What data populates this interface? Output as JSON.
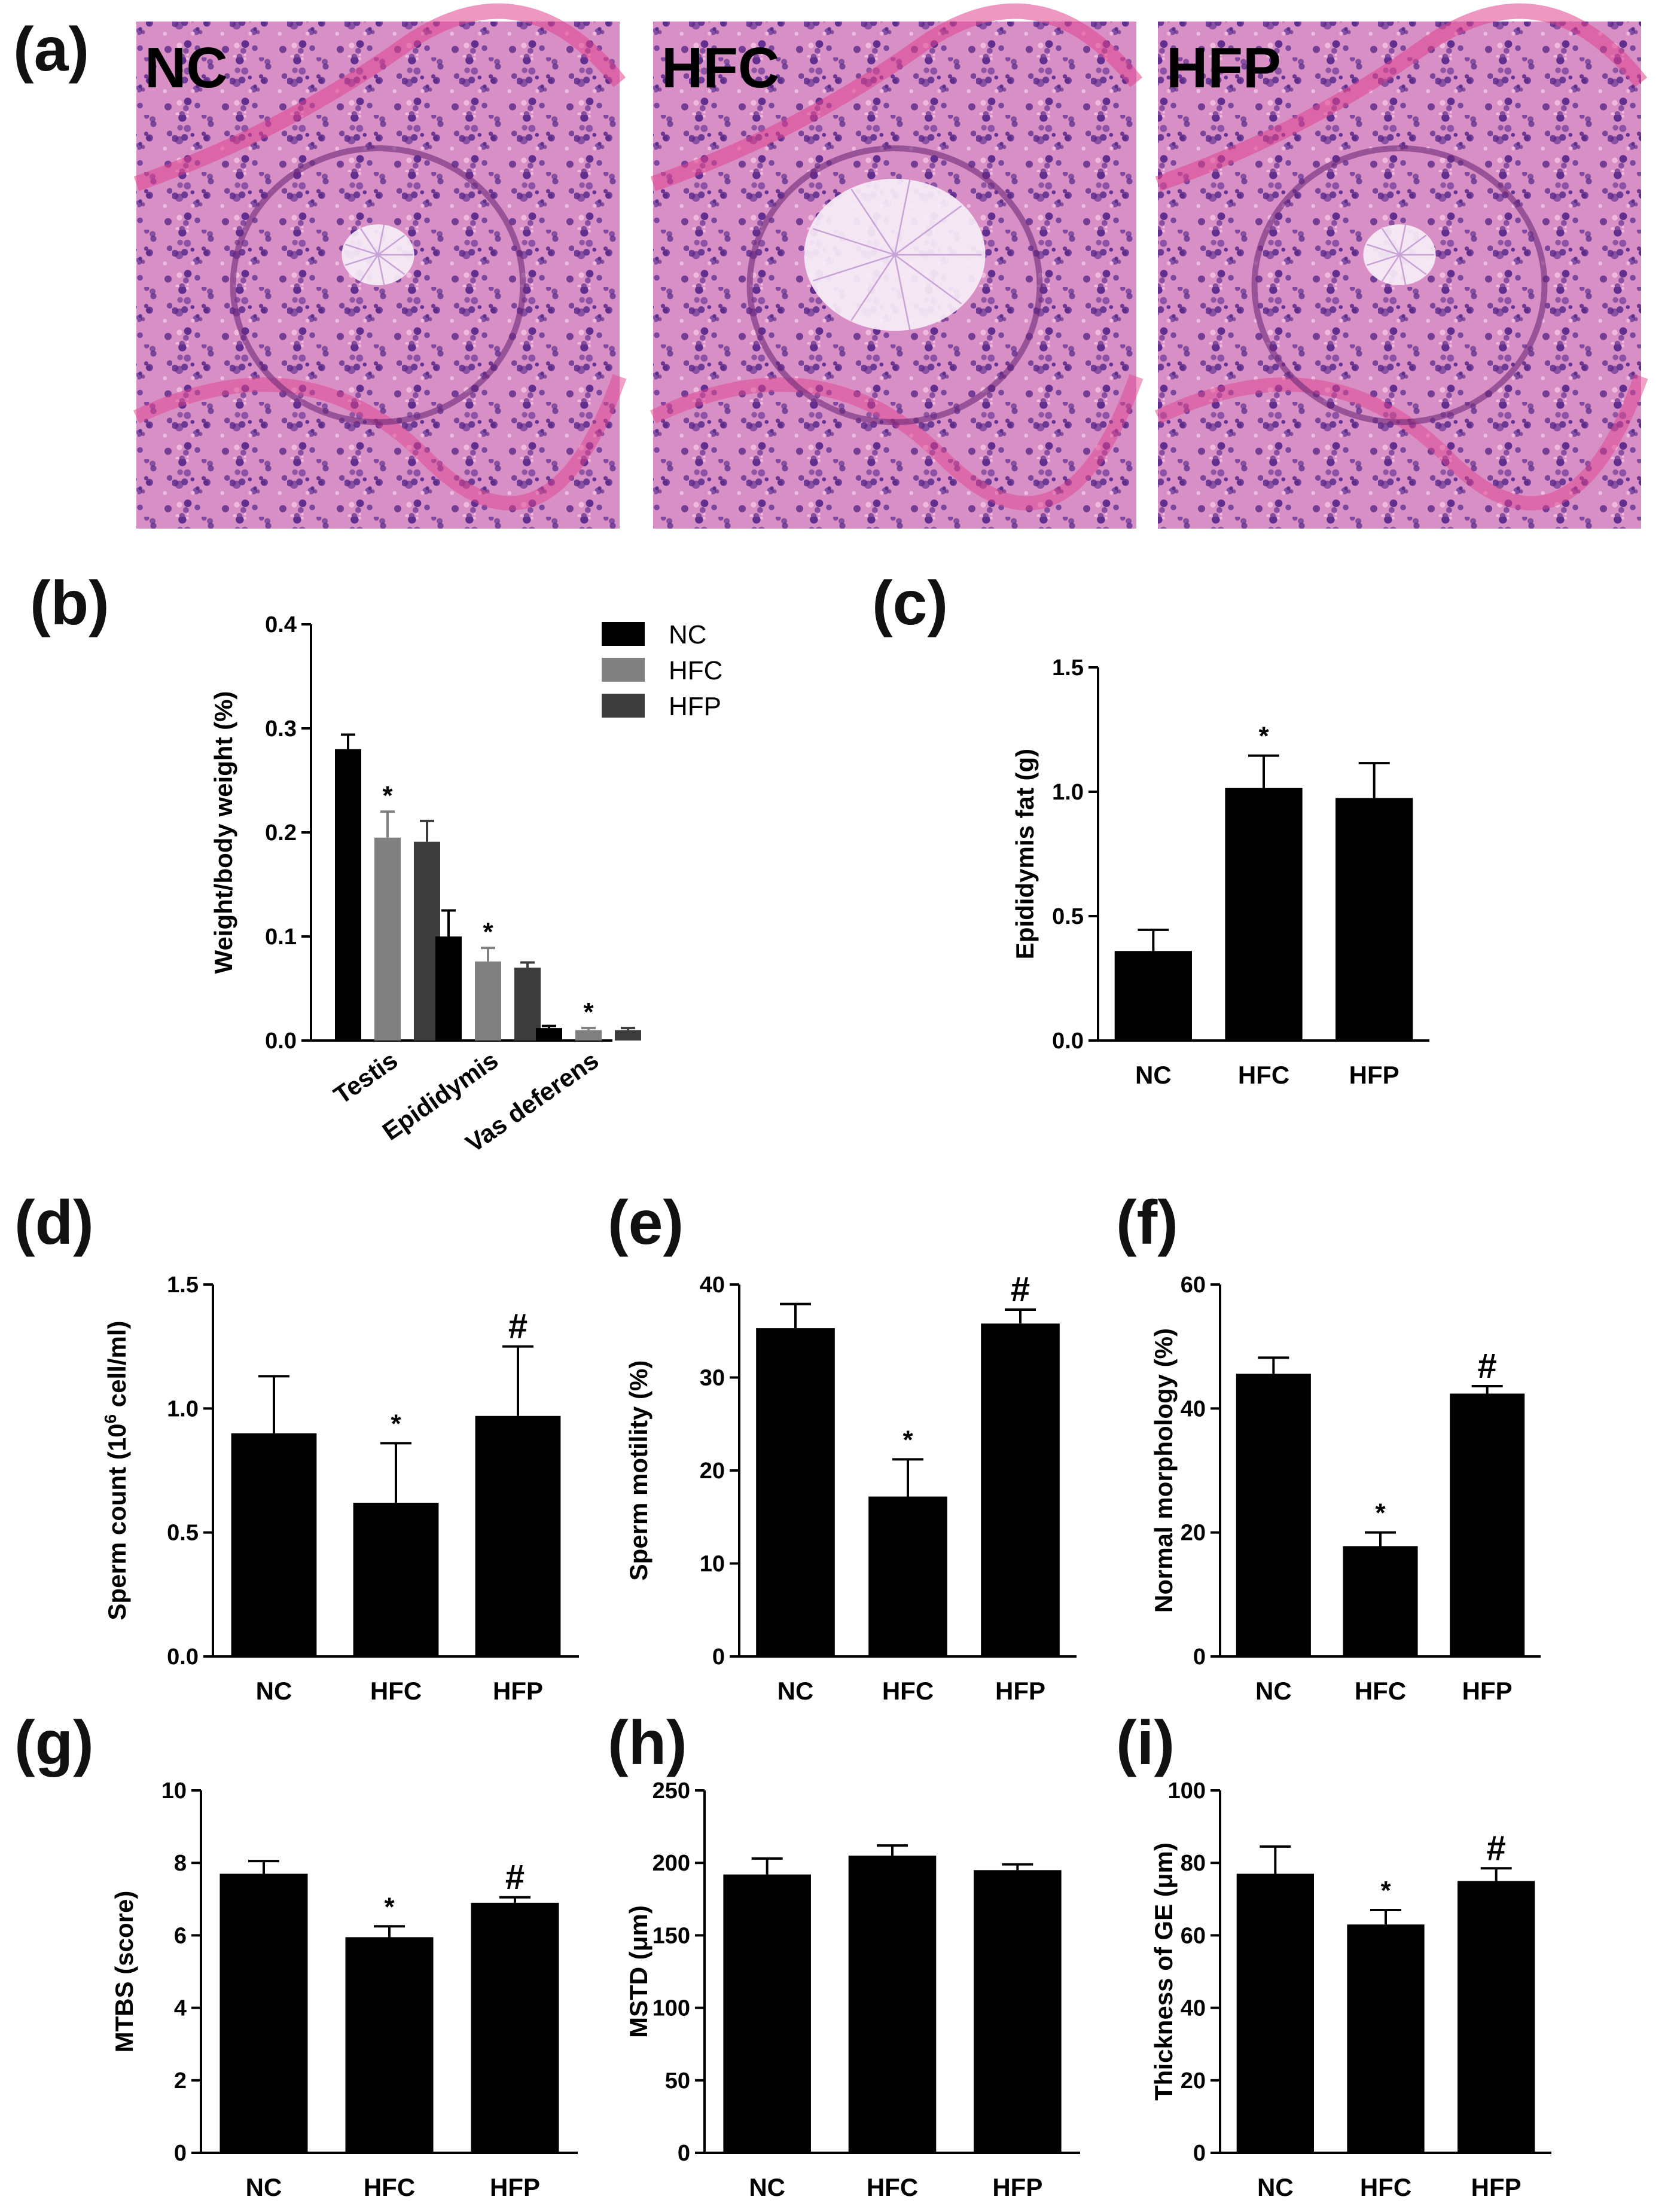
{
  "colors": {
    "background": "#ffffff",
    "bar_black": "#000000",
    "bar_gray": "#808080",
    "bar_dark": "#3c3c3c",
    "tissue_base": "#d88fc6",
    "tissue_nuclei": "#5a2a8c",
    "tissue_stroma": "#e0438e"
  },
  "panel_a": {
    "label": "(a)",
    "images": [
      {
        "label": "NC",
        "lumen": "normal"
      },
      {
        "label": "HFC",
        "lumen": "wide"
      },
      {
        "label": "HFP",
        "lumen": "normal"
      }
    ]
  },
  "chart_data": [
    {
      "panel": "(b)",
      "type": "bar",
      "xlabel": "",
      "ylabel": "Weight/body weight (%)",
      "ylim": [
        0,
        0.4
      ],
      "yticks": [
        "0.0",
        "0.1",
        "0.2",
        "0.3",
        "0.4"
      ],
      "categories": [
        "Testis",
        "Epididymis",
        "Vas deferens"
      ],
      "series": [
        {
          "name": "NC",
          "color": "#000000",
          "values": [
            0.28,
            0.1,
            0.012
          ],
          "errors": [
            0.014,
            0.025,
            0.002
          ]
        },
        {
          "name": "HFC",
          "color": "#808080",
          "values": [
            0.195,
            0.076,
            0.01
          ],
          "errors": [
            0.025,
            0.013,
            0.002
          ]
        },
        {
          "name": "HFP",
          "color": "#3c3c3c",
          "values": [
            0.191,
            0.07,
            0.01
          ],
          "errors": [
            0.02,
            0.005,
            0.002
          ]
        }
      ],
      "annotations": [
        {
          "category": 0,
          "series": 1,
          "text": "*"
        },
        {
          "category": 1,
          "series": 1,
          "text": "*"
        },
        {
          "category": 2,
          "series": 1,
          "text": "*"
        }
      ],
      "legend": "top-right",
      "grid": false
    },
    {
      "panel": "(c)",
      "type": "bar",
      "xlabel": "",
      "ylabel": "Epididymis fat (g)",
      "ylim": [
        0,
        1.5
      ],
      "yticks": [
        "0.0",
        "0.5",
        "1.0",
        "1.5"
      ],
      "categories": [
        "NC",
        "HFC",
        "HFP"
      ],
      "values": [
        0.36,
        1.015,
        0.975
      ],
      "errors": [
        0.085,
        0.13,
        0.14
      ],
      "annotations": [
        "",
        "*",
        ""
      ],
      "grid": false
    },
    {
      "panel": "(d)",
      "type": "bar",
      "xlabel": "",
      "ylabel": "Sperm count (10^6 cell/ml)",
      "ylabel_parts": {
        "pre": "Sperm count (10",
        "sup": "6",
        "post": " cell/ml)"
      },
      "ylim": [
        0,
        1.5
      ],
      "yticks": [
        "0.0",
        "0.5",
        "1.0",
        "1.5"
      ],
      "categories": [
        "NC",
        "HFC",
        "HFP"
      ],
      "values": [
        0.9,
        0.62,
        0.97
      ],
      "errors": [
        0.23,
        0.24,
        0.28
      ],
      "annotations": [
        "",
        "*",
        "#"
      ],
      "grid": false
    },
    {
      "panel": "(e)",
      "type": "bar",
      "xlabel": "",
      "ylabel": "Sperm motility (%)",
      "ylim": [
        0,
        40
      ],
      "yticks": [
        "0",
        "10",
        "20",
        "30",
        "40"
      ],
      "categories": [
        "NC",
        "HFC",
        "HFP"
      ],
      "values": [
        35.3,
        17.2,
        35.8
      ],
      "errors": [
        2.6,
        4.0,
        1.5
      ],
      "annotations": [
        "",
        "*",
        "#"
      ],
      "grid": false
    },
    {
      "panel": "(f)",
      "type": "bar",
      "xlabel": "",
      "ylabel": "Normal morphology (%)",
      "ylim": [
        0,
        60
      ],
      "yticks": [
        "0",
        "20",
        "40",
        "60"
      ],
      "categories": [
        "NC",
        "HFC",
        "HFP"
      ],
      "values": [
        45.6,
        17.8,
        42.4
      ],
      "errors": [
        2.6,
        2.2,
        1.2
      ],
      "annotations": [
        "",
        "*",
        "#"
      ],
      "grid": false
    },
    {
      "panel": "(g)",
      "type": "bar",
      "xlabel": "",
      "ylabel": "MTBS (score)",
      "ylim": [
        0,
        10
      ],
      "yticks": [
        "0",
        "2",
        "4",
        "6",
        "8",
        "10"
      ],
      "categories": [
        "NC",
        "HFC",
        "HFP"
      ],
      "values": [
        7.7,
        5.95,
        6.9
      ],
      "errors": [
        0.35,
        0.3,
        0.15
      ],
      "annotations": [
        "",
        "*",
        "#"
      ],
      "grid": false
    },
    {
      "panel": "(h)",
      "type": "bar",
      "xlabel": "",
      "ylabel": "MSTD (μm)",
      "ylim": [
        0,
        250
      ],
      "yticks": [
        "0",
        "50",
        "100",
        "150",
        "200",
        "250"
      ],
      "categories": [
        "NC",
        "HFC",
        "HFP"
      ],
      "values": [
        192,
        205,
        195
      ],
      "errors": [
        11,
        7,
        4
      ],
      "annotations": [
        "",
        "",
        ""
      ],
      "grid": false
    },
    {
      "panel": "(i)",
      "type": "bar",
      "xlabel": "",
      "ylabel": "Thickness of GE (μm)",
      "ylim": [
        0,
        100
      ],
      "yticks": [
        "0",
        "20",
        "40",
        "60",
        "80",
        "100"
      ],
      "categories": [
        "NC",
        "HFC",
        "HFP"
      ],
      "values": [
        77,
        63,
        75
      ],
      "errors": [
        7.5,
        4,
        3.5
      ],
      "annotations": [
        "",
        "*",
        "#"
      ],
      "grid": false
    }
  ]
}
